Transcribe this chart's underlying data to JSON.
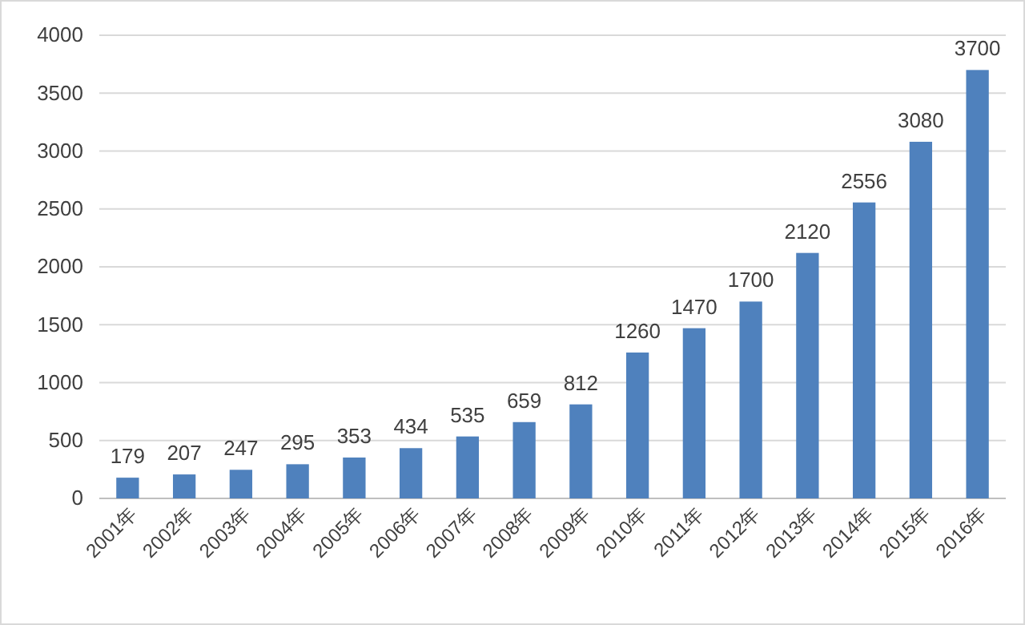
{
  "chart_data": {
    "type": "bar",
    "categories": [
      "2001年",
      "2002年",
      "2003年",
      "2004年",
      "2005年",
      "2006年",
      "2007年",
      "2008年",
      "2009年",
      "2010年",
      "2011年",
      "2012年",
      "2013年",
      "2014年",
      "2015年",
      "2016年"
    ],
    "values": [
      179,
      207,
      247,
      295,
      353,
      434,
      535,
      659,
      812,
      1260,
      1470,
      1700,
      2120,
      2556,
      3080,
      3700
    ],
    "color": "#4f81bd",
    "ylim": [
      0,
      4000
    ],
    "yticks": [
      0,
      500,
      1000,
      1500,
      2000,
      2500,
      3000,
      3500,
      4000
    ],
    "grid": "y",
    "data_labels": true
  }
}
